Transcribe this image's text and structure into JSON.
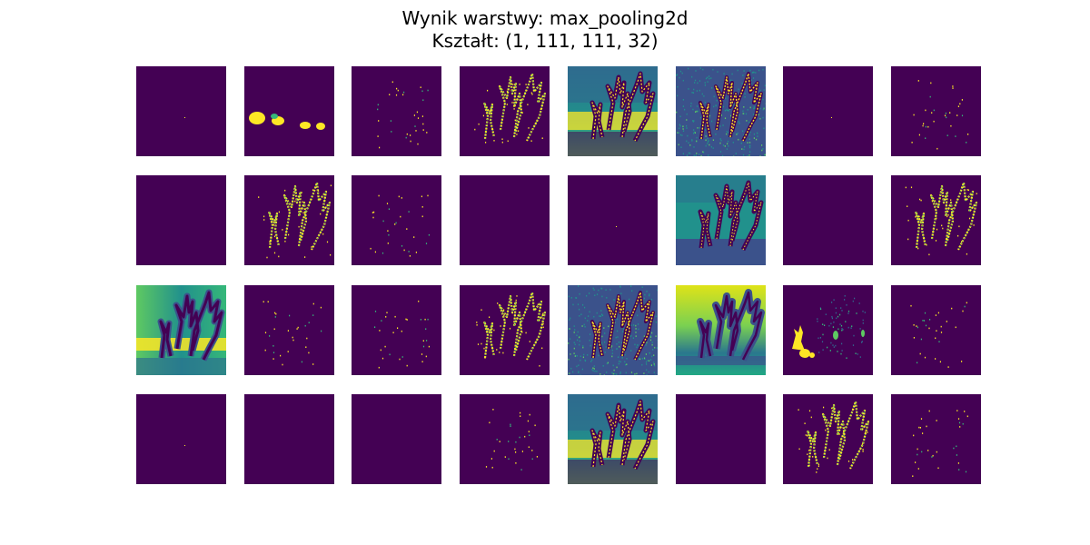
{
  "chart_data": {
    "type": "heatmap",
    "title": "Wynik warstwy: max_pooling2d",
    "subtitle": "Kształt: (1, 111, 111, 32)",
    "xlabel": "",
    "ylabel": "",
    "colormap": "viridis",
    "grid": false,
    "layout": {
      "rows": 4,
      "cols": 8
    },
    "channels": [
      {
        "index": 0,
        "pattern": "empty"
      },
      {
        "index": 1,
        "pattern": "blobs"
      },
      {
        "index": 2,
        "pattern": "sparse"
      },
      {
        "index": 3,
        "pattern": "edges"
      },
      {
        "index": 4,
        "pattern": "scene-bright-bottom"
      },
      {
        "index": 5,
        "pattern": "scene-texture"
      },
      {
        "index": 6,
        "pattern": "empty"
      },
      {
        "index": 7,
        "pattern": "sparse"
      },
      {
        "index": 8,
        "pattern": "empty"
      },
      {
        "index": 9,
        "pattern": "edges"
      },
      {
        "index": 10,
        "pattern": "sparse"
      },
      {
        "index": 11,
        "pattern": "empty"
      },
      {
        "index": 12,
        "pattern": "empty"
      },
      {
        "index": 13,
        "pattern": "scene-teal"
      },
      {
        "index": 14,
        "pattern": "empty"
      },
      {
        "index": 15,
        "pattern": "edges"
      },
      {
        "index": 16,
        "pattern": "scene-gradient"
      },
      {
        "index": 17,
        "pattern": "sparse"
      },
      {
        "index": 18,
        "pattern": "sparse"
      },
      {
        "index": 19,
        "pattern": "edges"
      },
      {
        "index": 20,
        "pattern": "scene-texture"
      },
      {
        "index": 21,
        "pattern": "scene-yellow-top"
      },
      {
        "index": 22,
        "pattern": "figure-left"
      },
      {
        "index": 23,
        "pattern": "sparse"
      },
      {
        "index": 24,
        "pattern": "empty"
      },
      {
        "index": 25,
        "pattern": "empty"
      },
      {
        "index": 26,
        "pattern": "empty"
      },
      {
        "index": 27,
        "pattern": "sparse"
      },
      {
        "index": 28,
        "pattern": "scene-bright-bottom"
      },
      {
        "index": 29,
        "pattern": "empty"
      },
      {
        "index": 30,
        "pattern": "edges"
      },
      {
        "index": 31,
        "pattern": "sparse"
      }
    ]
  }
}
